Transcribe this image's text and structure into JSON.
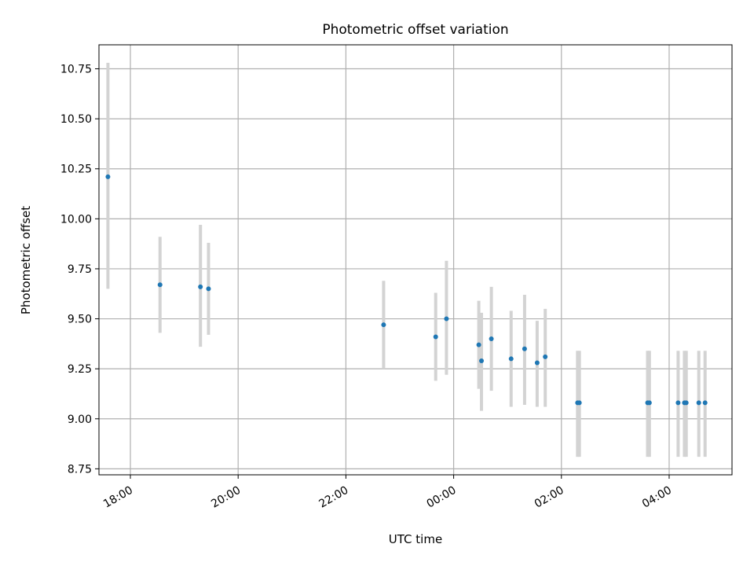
{
  "chart_data": {
    "type": "scatter",
    "title": "Photometric offset variation",
    "xlabel": "UTC time",
    "ylabel": "Photometric offset",
    "x_ticks": [
      "18:00",
      "20:00",
      "22:00",
      "00:00",
      "02:00",
      "04:00"
    ],
    "y_ticks": [
      "8.75",
      "9.00",
      "9.25",
      "9.50",
      "9.75",
      "10.00",
      "10.25",
      "10.50",
      "10.75"
    ],
    "ylim": [
      8.72,
      10.87
    ],
    "xlim": [
      "17:25",
      "05:10"
    ],
    "grid": true,
    "colors": {
      "point": "#1f77b4",
      "errorbar": "#d3d3d3",
      "grid": "#b0b0b0"
    },
    "points": [
      {
        "time": "17:35",
        "y": 10.21,
        "yerr_low": 9.65,
        "yerr_high": 10.78
      },
      {
        "time": "18:33",
        "y": 9.67,
        "yerr_low": 9.43,
        "yerr_high": 9.91
      },
      {
        "time": "19:18",
        "y": 9.66,
        "yerr_low": 9.36,
        "yerr_high": 9.97
      },
      {
        "time": "19:27",
        "y": 9.65,
        "yerr_low": 9.42,
        "yerr_high": 9.88
      },
      {
        "time": "22:42",
        "y": 9.47,
        "yerr_low": 9.25,
        "yerr_high": 9.69
      },
      {
        "time": "23:40",
        "y": 9.41,
        "yerr_low": 9.19,
        "yerr_high": 9.63
      },
      {
        "time": "23:52",
        "y": 9.5,
        "yerr_low": 9.22,
        "yerr_high": 9.79
      },
      {
        "time": "00:28",
        "y": 9.37,
        "yerr_low": 9.15,
        "yerr_high": 9.59
      },
      {
        "time": "00:31",
        "y": 9.29,
        "yerr_low": 9.04,
        "yerr_high": 9.53
      },
      {
        "time": "00:42",
        "y": 9.4,
        "yerr_low": 9.14,
        "yerr_high": 9.66
      },
      {
        "time": "01:04",
        "y": 9.3,
        "yerr_low": 9.06,
        "yerr_high": 9.54
      },
      {
        "time": "01:19",
        "y": 9.35,
        "yerr_low": 9.07,
        "yerr_high": 9.62
      },
      {
        "time": "01:33",
        "y": 9.28,
        "yerr_low": 9.06,
        "yerr_high": 9.49
      },
      {
        "time": "01:42",
        "y": 9.31,
        "yerr_low": 9.06,
        "yerr_high": 9.55
      },
      {
        "time": "02:18",
        "y": 9.08,
        "yerr_low": 8.81,
        "yerr_high": 9.34
      },
      {
        "time": "02:20",
        "y": 9.08,
        "yerr_low": 8.81,
        "yerr_high": 9.34
      },
      {
        "time": "03:36",
        "y": 9.08,
        "yerr_low": 8.81,
        "yerr_high": 9.34
      },
      {
        "time": "03:38",
        "y": 9.08,
        "yerr_low": 8.81,
        "yerr_high": 9.34
      },
      {
        "time": "04:10",
        "y": 9.08,
        "yerr_low": 8.81,
        "yerr_high": 9.34
      },
      {
        "time": "04:17",
        "y": 9.08,
        "yerr_low": 8.81,
        "yerr_high": 9.34
      },
      {
        "time": "04:19",
        "y": 9.08,
        "yerr_low": 8.81,
        "yerr_high": 9.34
      },
      {
        "time": "04:33",
        "y": 9.08,
        "yerr_low": 8.81,
        "yerr_high": 9.34
      },
      {
        "time": "04:40",
        "y": 9.08,
        "yerr_low": 8.81,
        "yerr_high": 9.34
      }
    ]
  }
}
